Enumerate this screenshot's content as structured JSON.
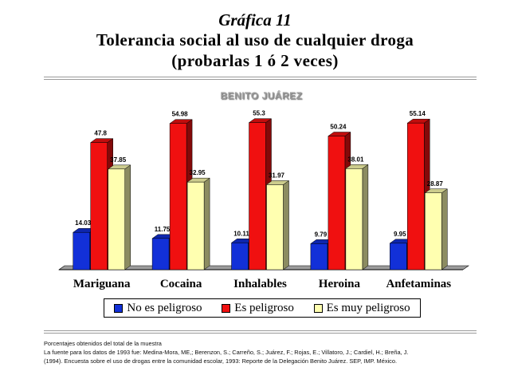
{
  "header": {
    "kicker": "Gráfica 11",
    "title_line1": "Tolerancia social al uso de cualquier droga",
    "title_line2": "(probarlas 1 ó 2 veces)"
  },
  "chart_data": {
    "type": "bar",
    "title": "BENITO JUÁREZ",
    "categories": [
      "Mariguana",
      "Cocaina",
      "Inhalables",
      "Heroina",
      "Anfetaminas"
    ],
    "series": [
      {
        "name": "No es peligroso",
        "color": "#1230d8",
        "values": [
          14.03,
          11.75,
          10.11,
          9.79,
          9.95
        ]
      },
      {
        "name": "Es peligroso",
        "color": "#f01010",
        "values": [
          47.8,
          54.98,
          55.3,
          50.24,
          55.14
        ]
      },
      {
        "name": "Es muy peligroso",
        "color": "#ffffb0",
        "values": [
          37.85,
          32.95,
          31.97,
          38.01,
          28.87
        ]
      }
    ],
    "ylim": [
      0,
      60
    ],
    "grid": false,
    "three_d": true,
    "legend_position": "bottom"
  },
  "footnote": {
    "line1": "Porcentajes obtenidos del total de la muestra",
    "line2": "La fuente para los datos de 1993 fue: Medina-Mora, ME,; Berenzon, S.; Carreño, S.; Juárez, F.; Rojas, E.; Villatoro, J.; Cardiel, H.; Breña, J.",
    "line3": "(1994). Encuesta sobre el uso de drogas entre la comunidad escolar, 1993: Reporte de la Delegación Benito Juárez. SEP, IMP. México."
  }
}
